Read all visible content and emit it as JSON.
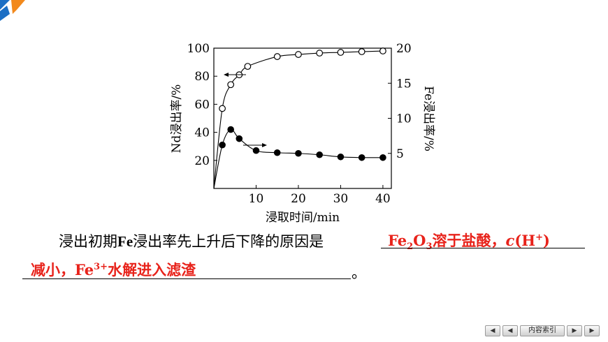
{
  "chart_data": {
    "type": "line",
    "xlabel": "浸取时间/min",
    "ylabel_left": "Nd浸出率/%",
    "ylabel_right": "Fe浸出率/%",
    "xlim": [
      0,
      42
    ],
    "ylim_left": [
      0,
      100
    ],
    "ylim_right": [
      0,
      20
    ],
    "x_ticks": [
      10,
      20,
      30,
      40
    ],
    "y_ticks_left": [
      20,
      40,
      60,
      80,
      100
    ],
    "y_ticks_right": [
      5,
      10,
      15,
      20
    ],
    "grid": false,
    "series": [
      {
        "axis": "left",
        "marker": "open-circle",
        "x": [
          2,
          4,
          6,
          8,
          15,
          20,
          25,
          30,
          35,
          40
        ],
        "y": [
          57,
          74,
          81,
          87,
          94,
          95.5,
          96.5,
          97,
          97.5,
          98
        ]
      },
      {
        "axis": "right",
        "marker": "filled-circle",
        "x": [
          2,
          4,
          6,
          10,
          15,
          20,
          25,
          30,
          35,
          40
        ],
        "y": [
          6.2,
          8.4,
          7.1,
          5.4,
          5.1,
          5.0,
          4.8,
          4.5,
          4.4,
          4.4
        ]
      }
    ]
  },
  "question": {
    "prefix": "浸出初期",
    "fe_bold": "Fe",
    "middle": "浸出率先上升后下降的原因是",
    "answer1_fe": "Fe",
    "answer1_sub2": "2",
    "answer1_o": "O",
    "answer1_sub3": "3",
    "answer1_rest": "溶于盐酸，",
    "answer1_c": "c",
    "answer1_h": "(H",
    "answer1_plus": "+",
    "answer1_close": ")",
    "answer2_a": "减小，Fe",
    "answer2_sup": "3+",
    "answer2_b": "水解进入滤渣",
    "end": "。"
  },
  "nav": {
    "first": "◀",
    "prev": "◀",
    "index_label": "内容索引",
    "next": "▶",
    "last": "▶"
  }
}
